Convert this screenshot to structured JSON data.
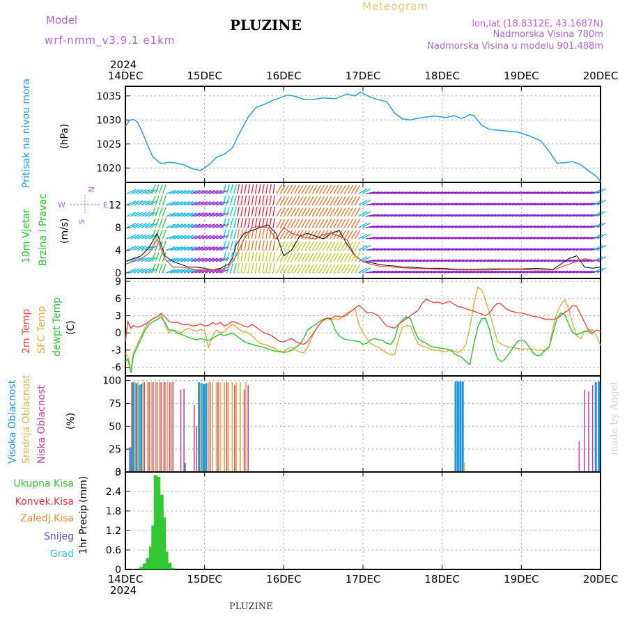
{
  "header": {
    "model_label": "Model",
    "model_name": "wrf-nmm_v3.9.1 e1km",
    "title": "PLUZINE",
    "meteogram_label": "Meteogram",
    "coords": "lon,lat (18.8312E, 43.1687N)",
    "elevation": "Nadmorska Visina 780m",
    "model_elevation": "Nadmorska Visina u modelu 901.488m"
  },
  "footer": {
    "station": "PLUZINE",
    "credit": "made by Angel"
  },
  "time_axis": {
    "year": "2024",
    "ticks": [
      "14DEC",
      "15DEC",
      "16DEC",
      "17DEC",
      "18DEC",
      "19DEC",
      "20DEC"
    ]
  },
  "colors": {
    "pressure": "#1ea0e6",
    "temp2m": "#f0463c",
    "sfc_temp": "#e6aa3c",
    "dewpt": "#28c828",
    "high_cloud": "#1e96dc",
    "mid_cloud": "#e6b450",
    "low_cloud": "#c83ca0",
    "precip": "#32c832",
    "grid": "#a0a0a0",
    "legend_total": "#32c832",
    "legend_conv": "#f0323c",
    "legend_frz": "#f08c3c",
    "legend_snow": "#5050dc",
    "legend_hail": "#32c8c8",
    "wind_label": "#1ec81e",
    "compass": "#b464dc",
    "model": "#b464dc"
  },
  "chart_data": [
    {
      "type": "line",
      "panel": "pressure",
      "ylabel": "Pritisak na nivou mora",
      "unit": "(hPa)",
      "ylim": [
        1017,
        1037
      ],
      "yticks": [
        1020,
        1025,
        1030,
        1035
      ],
      "x_days": [
        0,
        0.05,
        0.1,
        0.15,
        0.2,
        0.25,
        0.3,
        0.35,
        0.45,
        0.55,
        0.65,
        0.75,
        0.85,
        0.95,
        1.05,
        1.15,
        1.25,
        1.35,
        1.45,
        1.55,
        1.65,
        1.75,
        1.85,
        1.95,
        2.05,
        2.15,
        2.25,
        2.35,
        2.5,
        2.65,
        2.8,
        2.9,
        2.97,
        3.05,
        3.15,
        3.3,
        3.4,
        3.5,
        3.6,
        3.75,
        3.9,
        4.05,
        4.15,
        4.25,
        4.35,
        4.4,
        4.5,
        4.6,
        4.75,
        4.95,
        5.1,
        5.25,
        5.35,
        5.45,
        5.55,
        5.65,
        5.75,
        5.85,
        5.95,
        6.0
      ],
      "values": [
        1028.6,
        1029.9,
        1030.1,
        1029.6,
        1028.0,
        1026.0,
        1024.0,
        1022.2,
        1020.9,
        1021.2,
        1021.0,
        1020.6,
        1019.8,
        1019.5,
        1020.6,
        1022.2,
        1022.9,
        1024.2,
        1027.5,
        1030.6,
        1032.6,
        1033.2,
        1034.0,
        1034.6,
        1035.2,
        1034.9,
        1034.3,
        1034.2,
        1034.6,
        1034.4,
        1035.4,
        1035.0,
        1035.8,
        1035.1,
        1034.4,
        1033.8,
        1031.4,
        1030.2,
        1030.0,
        1030.5,
        1030.8,
        1030.5,
        1030.9,
        1030.3,
        1031.1,
        1030.9,
        1028.9,
        1028.0,
        1027.8,
        1027.5,
        1026.7,
        1025.6,
        1023.5,
        1021.0,
        1021.1,
        1021.3,
        1020.7,
        1019.4,
        1018.2,
        1017.2
      ]
    },
    {
      "type": "line",
      "panel": "wind",
      "ylabel1": "10m Vjetar",
      "ylabel2": "Brzina i Pravac",
      "unit": "(m/s)",
      "compass": {
        "n": "N",
        "w": "W",
        "e": "E",
        "s": "S"
      },
      "ylim": [
        -1,
        16
      ],
      "yticks": [
        0,
        4,
        8,
        12
      ],
      "series": [
        {
          "x_days": [
            0,
            0.1,
            0.2,
            0.3,
            0.4,
            0.45,
            0.5,
            0.55,
            0.6,
            0.7,
            0.8,
            0.9,
            1.0,
            1.1,
            1.2,
            1.3,
            1.35,
            1.4,
            1.5,
            1.6,
            1.7,
            1.8,
            1.9,
            2.0,
            2.1,
            2.2,
            2.3,
            2.4,
            2.5,
            2.6,
            2.7,
            2.8,
            2.9,
            3.0,
            3.1,
            3.2,
            3.3,
            3.4,
            3.5,
            3.6,
            3.8,
            4.0,
            4.2,
            4.4,
            4.6,
            4.8,
            5.0,
            5.2,
            5.4,
            5.6,
            5.7,
            5.8,
            5.9,
            6.0
          ],
          "values": [
            2.0,
            2.5,
            3.0,
            4.5,
            7.0,
            5.0,
            3.0,
            2.5,
            2.0,
            1.5,
            1.0,
            1.0,
            0.8,
            0.5,
            0.8,
            1.5,
            2.5,
            5.0,
            7.0,
            7.5,
            8.0,
            8.5,
            7.0,
            3.0,
            4.0,
            6.5,
            7.0,
            6.5,
            6.0,
            7.0,
            7.5,
            5.0,
            3.0,
            2.0,
            1.8,
            1.5,
            1.3,
            1.2,
            1.0,
            1.0,
            0.8,
            0.8,
            0.6,
            0.6,
            0.7,
            0.7,
            0.7,
            0.8,
            0.6,
            2.5,
            3.0,
            1.0,
            0.8,
            1.0
          ]
        },
        {
          "x_days": [
            0,
            0.1,
            0.2,
            0.3,
            0.4,
            0.5,
            0.6,
            0.7,
            0.8,
            0.9,
            1.0,
            1.1,
            1.2,
            1.3,
            1.4,
            1.5,
            1.6,
            1.7,
            1.8,
            1.9,
            2.0,
            2.1,
            2.2,
            2.3,
            2.4,
            2.5,
            2.6,
            2.7,
            2.8,
            2.9,
            3.0,
            3.1,
            3.2,
            3.4,
            3.6,
            3.8,
            4.0,
            4.2,
            4.4,
            4.6,
            4.8,
            5.0,
            5.2,
            5.4,
            5.6,
            5.8,
            6.0
          ],
          "values": [
            1.5,
            2.0,
            2.5,
            3.5,
            6.0,
            2.5,
            1.0,
            1.0,
            0.8,
            0.5,
            0.5,
            0.5,
            0.6,
            1.0,
            3.0,
            6.0,
            8.0,
            8.2,
            8.0,
            6.0,
            8.0,
            7.0,
            6.5,
            6.2,
            6.0,
            6.8,
            7.0,
            6.5,
            5.8,
            3.0,
            2.0,
            1.5,
            1.2,
            1.0,
            0.8,
            0.7,
            0.6,
            0.5,
            0.5,
            0.5,
            0.6,
            0.6,
            0.5,
            0.5,
            1.5,
            2.5,
            2.0
          ]
        }
      ]
    },
    {
      "type": "line",
      "panel": "temperature",
      "ylabel1": "2m Temp",
      "ylabel2": "SFC Temp",
      "ylabel3": "dewpt Temp",
      "unit": "(C)",
      "ylim": [
        -7.5,
        9.5
      ],
      "yticks": [
        -6,
        -3,
        0,
        3,
        6,
        9
      ],
      "x_days": [
        0,
        0.03,
        0.07,
        0.1,
        0.15,
        0.2,
        0.25,
        0.3,
        0.35,
        0.4,
        0.45,
        0.5,
        0.55,
        0.6,
        0.65,
        0.7,
        0.75,
        0.8,
        0.85,
        0.9,
        0.95,
        1.0,
        1.05,
        1.1,
        1.15,
        1.2,
        1.25,
        1.3,
        1.35,
        1.4,
        1.45,
        1.5,
        1.55,
        1.6,
        1.65,
        1.7,
        1.75,
        1.8,
        1.85,
        1.9,
        1.95,
        2.0,
        2.05,
        2.1,
        2.15,
        2.2,
        2.25,
        2.3,
        2.35,
        2.4,
        2.45,
        2.5,
        2.55,
        2.6,
        2.65,
        2.7,
        2.75,
        2.8,
        2.85,
        2.9,
        2.95,
        3.0,
        3.05,
        3.1,
        3.15,
        3.2,
        3.25,
        3.3,
        3.35,
        3.4,
        3.45,
        3.5,
        3.55,
        3.6,
        3.65,
        3.7,
        3.75,
        3.8,
        3.85,
        3.9,
        3.95,
        4.0,
        4.05,
        4.1,
        4.15,
        4.2,
        4.25,
        4.3,
        4.35,
        4.4,
        4.45,
        4.5,
        4.55,
        4.6,
        4.65,
        4.7,
        4.75,
        4.8,
        4.85,
        4.9,
        4.95,
        5.0,
        5.05,
        5.1,
        5.15,
        5.2,
        5.25,
        5.3,
        5.35,
        5.4,
        5.45,
        5.5,
        5.55,
        5.6,
        5.65,
        5.7,
        5.75,
        5.8,
        5.85,
        5.9,
        5.95,
        6.0
      ],
      "series": [
        {
          "name": "2m Temp",
          "values": [
            -1.5,
            2.0,
            0.8,
            1.3,
            1.0,
            1.2,
            1.5,
            2.0,
            2.5,
            2.8,
            3.4,
            2.8,
            2.0,
            1.8,
            1.9,
            1.6,
            1.4,
            1.5,
            1.2,
            1.3,
            1.6,
            1.2,
            1.3,
            1.8,
            1.5,
            1.8,
            1.2,
            1.5,
            2.0,
            1.8,
            1.5,
            1.2,
            1.0,
            1.5,
            1.0,
            0.5,
            0.0,
            -0.2,
            -0.5,
            -1.0,
            -1.5,
            -1.6,
            -1.2,
            -1.0,
            -1.5,
            -1.8,
            -2.0,
            -1.5,
            -0.5,
            0.5,
            1.5,
            2.2,
            2.6,
            2.5,
            3.0,
            2.8,
            2.8,
            3.2,
            3.8,
            4.3,
            4.8,
            4.2,
            3.5,
            3.6,
            3.3,
            3.0,
            2.0,
            1.2,
            1.0,
            0.8,
            1.5,
            2.0,
            2.5,
            3.0,
            3.5,
            4.0,
            5.2,
            5.9,
            5.5,
            5.3,
            5.4,
            5.1,
            5.3,
            5.5,
            5.0,
            4.6,
            4.5,
            4.2,
            4.0,
            3.8,
            3.5,
            3.3,
            3.0,
            3.5,
            4.5,
            5.2,
            5.0,
            4.3,
            3.9,
            3.7,
            3.5,
            3.5,
            3.3,
            3.1,
            2.9,
            2.8,
            2.6,
            2.4,
            2.4,
            2.3,
            2.5,
            3.0,
            3.6,
            4.0,
            4.8,
            4.6,
            3.2,
            1.8,
            0.5,
            0.0,
            0.5,
            0.3
          ]
        },
        {
          "name": "SFC Temp",
          "values": [
            -3.5,
            -4.0,
            -6.5,
            -3.5,
            -2.0,
            -0.5,
            1.0,
            2.0,
            2.5,
            2.8,
            3.2,
            1.5,
            0.0,
            0.5,
            0.3,
            0.0,
            0.5,
            0.8,
            0.5,
            0.3,
            0.6,
            0.4,
            -2.5,
            -0.5,
            0.5,
            0.0,
            0.2,
            1.0,
            1.5,
            1.0,
            0.5,
            0.2,
            0.0,
            -0.5,
            -1.2,
            -1.8,
            -2.0,
            -2.2,
            -2.5,
            -2.8,
            -3.2,
            -3.3,
            -2.8,
            -2.5,
            -3.0,
            -3.3,
            -3.5,
            -2.5,
            -1.0,
            0.5,
            1.5,
            2.2,
            2.5,
            2.2,
            2.5,
            2.3,
            3.0,
            3.5,
            3.8,
            4.2,
            1.5,
            0.0,
            -1.0,
            -1.8,
            -2.3,
            -2.5,
            -3.0,
            -3.5,
            -3.8,
            -3.8,
            -1.0,
            1.0,
            1.3,
            1.2,
            -0.5,
            -2.0,
            -2.3,
            -2.5,
            -2.8,
            -3.0,
            -3.0,
            -3.2,
            -3.3,
            -3.0,
            -3.2,
            -3.4,
            -3.0,
            -2.0,
            1.0,
            5.0,
            8.0,
            7.5,
            5.5,
            3.5,
            1.0,
            -1.5,
            -2.0,
            -2.3,
            -2.5,
            -2.6,
            -2.7,
            -2.8,
            -2.8,
            -2.8,
            -2.9,
            -3.0,
            -3.0,
            -3.2,
            -2.5,
            1.0,
            3.5,
            5.0,
            5.8,
            4.2,
            1.5,
            -0.5,
            -1.0,
            0.3,
            0.5,
            0.5,
            -0.5,
            -2.2
          ]
        },
        {
          "name": "dewpt Temp",
          "values": [
            -5.0,
            -4.5,
            -7.0,
            -4.0,
            -2.5,
            -1.0,
            0.5,
            1.5,
            2.0,
            2.3,
            2.8,
            1.8,
            0.5,
            0.5,
            0.0,
            -0.2,
            -0.5,
            -0.8,
            -1.0,
            -1.2,
            -1.0,
            -1.2,
            -1.3,
            -1.0,
            -0.5,
            -0.2,
            -0.5,
            -0.2,
            0.0,
            -0.5,
            -1.0,
            -1.5,
            -1.8,
            -2.0,
            -2.2,
            -2.4,
            -2.5,
            -2.8,
            -3.0,
            -3.2,
            -3.3,
            -3.4,
            -3.3,
            -3.0,
            -2.5,
            -2.0,
            -1.0,
            0.5,
            1.0,
            1.5,
            2.0,
            2.4,
            2.6,
            2.3,
            0.5,
            -0.5,
            -1.0,
            -1.2,
            -1.3,
            -1.4,
            -1.5,
            -2.0,
            -1.8,
            -1.2,
            -1.0,
            -1.2,
            -1.3,
            -1.8,
            -2.0,
            -1.0,
            1.5,
            2.3,
            2.8,
            2.5,
            0.5,
            -1.0,
            -1.5,
            -1.8,
            -2.3,
            -2.5,
            -2.6,
            -2.7,
            -2.8,
            -3.0,
            -3.5,
            -4.0,
            -4.3,
            -5.0,
            -5.5,
            -2.0,
            1.0,
            2.5,
            2.5,
            0.5,
            -2.5,
            -4.5,
            -5.0,
            -4.5,
            -3.5,
            -2.5,
            -1.5,
            -1.2,
            -1.5,
            -2.5,
            -3.5,
            -4.0,
            -3.8,
            -3.0,
            -2.5,
            0.0,
            2.5,
            3.5,
            3.2,
            1.5,
            0.0,
            -0.3,
            0.0,
            0.3,
            0.2,
            -0.3
          ]
        }
      ]
    },
    {
      "type": "bar",
      "panel": "cloud",
      "ylabel1": "Visoka Oblacnost",
      "ylabel2": "Srednja Oblacnost",
      "ylabel3": "Niska Oblacnost",
      "unit": "(%)",
      "ylim": [
        0,
        105
      ],
      "yticks": [
        0,
        25,
        50,
        75,
        100
      ],
      "series": [
        {
          "name": "Visoka Oblacnost",
          "x_days": [
            0.06,
            0.1,
            0.14,
            0.17,
            0.2,
            0.75,
            0.93,
            0.96,
            0.99,
            1.02,
            4.17,
            4.2,
            4.23,
            4.26,
            5.94,
            5.98
          ],
          "values": [
            27,
            98,
            97,
            95,
            96,
            10,
            98,
            97,
            96,
            97,
            99,
            99,
            99,
            99,
            98,
            99
          ]
        },
        {
          "name": "Srednja Oblacnost",
          "x_days": [
            0.12,
            0.16,
            0.22,
            0.28,
            0.33,
            0.38,
            0.43,
            0.48,
            0.53,
            0.58,
            0.95,
            1.05,
            1.1,
            1.15,
            1.2,
            1.25,
            1.3,
            1.35,
            1.4,
            1.45,
            1.52,
            4.28
          ],
          "values": [
            98,
            98,
            98,
            98,
            98,
            98,
            98,
            98,
            98,
            98,
            96,
            98,
            98,
            98,
            98,
            98,
            98,
            98,
            98,
            98,
            98,
            10
          ]
        },
        {
          "name": "Niska Oblacnost",
          "x_days": [
            0.08,
            0.24,
            0.3,
            0.35,
            0.4,
            0.45,
            0.5,
            0.56,
            0.6,
            0.7,
            0.74,
            0.87,
            0.9,
            1.07,
            1.17,
            1.28,
            1.38,
            1.5,
            1.55,
            5.73,
            5.8,
            5.85,
            5.9
          ],
          "values": [
            98,
            98,
            98,
            98,
            98,
            98,
            98,
            98,
            98,
            90,
            91,
            73,
            50,
            98,
            98,
            98,
            95,
            90,
            95,
            34,
            90,
            88,
            95
          ]
        }
      ]
    },
    {
      "type": "bar",
      "panel": "precip",
      "ylabel": "1hr Precip",
      "unit": "(mm)",
      "ylim": [
        0,
        3.0
      ],
      "yticks": [
        0,
        0.6,
        1.2,
        1.8,
        2.4,
        3.0
      ],
      "legend": [
        "Ukupna Kisa",
        "Konvek.Kisa",
        "Zaledj.Kisa",
        "Snijeg",
        "Grad"
      ],
      "x_days": [
        0.1,
        0.2,
        0.24,
        0.28,
        0.32,
        0.35,
        0.38,
        0.42,
        0.46,
        0.49,
        0.52,
        0.56,
        0.6
      ],
      "values": [
        0.02,
        0.08,
        0.18,
        0.35,
        0.7,
        1.35,
        2.9,
        2.85,
        2.3,
        1.6,
        0.55,
        0.2,
        0.05
      ]
    }
  ]
}
